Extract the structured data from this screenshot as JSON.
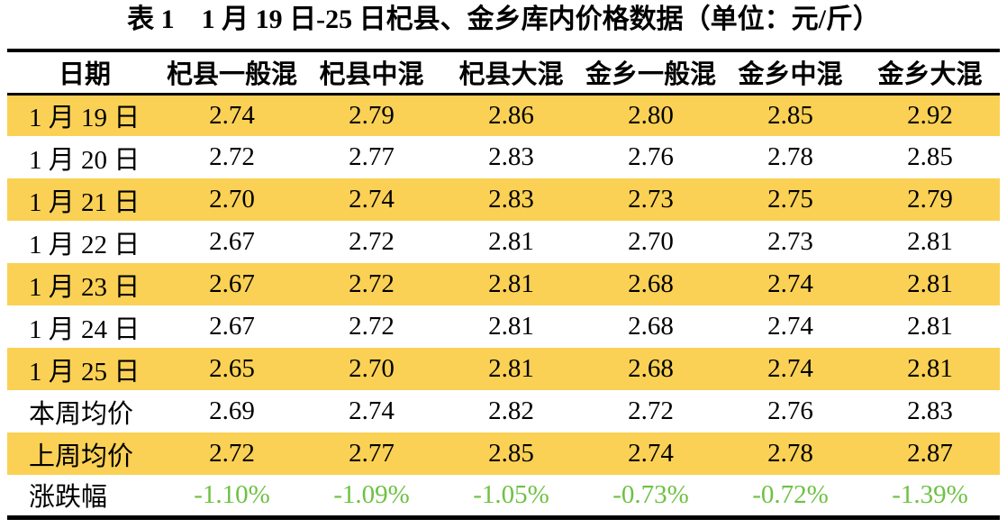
{
  "title": "表 1　1 月 19 日-25 日杞县、金乡库内价格数据（单位：元/斤）",
  "table": {
    "columns": [
      "日期",
      "杞县一般混",
      "杞县中混",
      "杞县大混",
      "金乡一般混",
      "金乡中混",
      "金乡大混"
    ],
    "rows": [
      {
        "label": "1 月 19 日",
        "values": [
          "2.74",
          "2.79",
          "2.86",
          "2.80",
          "2.85",
          "2.92"
        ],
        "highlight": true,
        "is_change_row": false
      },
      {
        "label": "1 月 20 日",
        "values": [
          "2.72",
          "2.77",
          "2.83",
          "2.76",
          "2.78",
          "2.85"
        ],
        "highlight": false,
        "is_change_row": false
      },
      {
        "label": "1 月 21 日",
        "values": [
          "2.70",
          "2.74",
          "2.83",
          "2.73",
          "2.75",
          "2.79"
        ],
        "highlight": true,
        "is_change_row": false
      },
      {
        "label": "1 月 22 日",
        "values": [
          "2.67",
          "2.72",
          "2.81",
          "2.70",
          "2.73",
          "2.81"
        ],
        "highlight": false,
        "is_change_row": false
      },
      {
        "label": "1 月 23 日",
        "values": [
          "2.67",
          "2.72",
          "2.81",
          "2.68",
          "2.74",
          "2.81"
        ],
        "highlight": true,
        "is_change_row": false
      },
      {
        "label": "1 月 24 日",
        "values": [
          "2.67",
          "2.72",
          "2.81",
          "2.68",
          "2.74",
          "2.81"
        ],
        "highlight": false,
        "is_change_row": false
      },
      {
        "label": "1 月 25 日",
        "values": [
          "2.65",
          "2.70",
          "2.81",
          "2.68",
          "2.74",
          "2.81"
        ],
        "highlight": true,
        "is_change_row": false
      },
      {
        "label": "本周均价",
        "values": [
          "2.69",
          "2.74",
          "2.82",
          "2.72",
          "2.76",
          "2.83"
        ],
        "highlight": false,
        "is_change_row": false
      },
      {
        "label": "上周均价",
        "values": [
          "2.72",
          "2.77",
          "2.85",
          "2.74",
          "2.78",
          "2.87"
        ],
        "highlight": true,
        "is_change_row": false
      },
      {
        "label": "涨跌幅",
        "values": [
          "-1.10%",
          "-1.09%",
          "-1.05%",
          "-0.73%",
          "-0.72%",
          "-1.39%"
        ],
        "highlight": false,
        "is_change_row": true
      }
    ]
  },
  "colors": {
    "highlight_row": "#FAD155",
    "change_negative": "#6EC143",
    "rule": "#000000",
    "background": "#FFFFFF",
    "text": "#000000"
  }
}
